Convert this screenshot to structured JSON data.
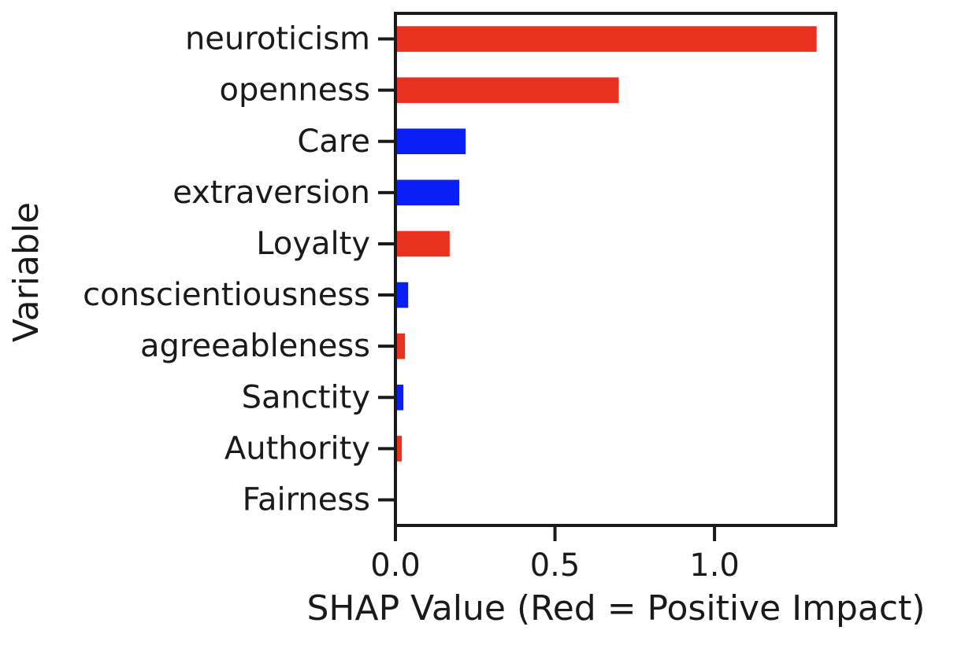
{
  "chart_data": {
    "type": "bar",
    "orientation": "horizontal",
    "categories": [
      "neuroticism",
      "openness",
      "Care",
      "extraversion",
      "Loyalty",
      "conscientiousness",
      "agreeableness",
      "Sanctity",
      "Authority",
      "Fairness"
    ],
    "values": [
      1.32,
      0.7,
      0.22,
      0.2,
      0.17,
      0.04,
      0.03,
      0.025,
      0.02,
      0.0
    ],
    "bar_colors": [
      "#e8321f",
      "#e8321f",
      "#0a1ff5",
      "#0a1ff5",
      "#e8321f",
      "#0a1ff5",
      "#e8321f",
      "#0a1ff5",
      "#e8321f",
      "#0a1ff5"
    ],
    "xlabel": "SHAP Value (Red = Positive Impact)",
    "ylabel": "Variable",
    "xlim": [
      0,
      1.38
    ],
    "xticks": [
      0.0,
      0.5,
      1.0
    ],
    "xtick_labels": [
      "0.0",
      "0.5",
      "1.0"
    ],
    "grid": false,
    "legend": "none"
  },
  "colors": {
    "positive": "#e8321f",
    "negative": "#0a1ff5",
    "axis": "#1a1a1a"
  }
}
